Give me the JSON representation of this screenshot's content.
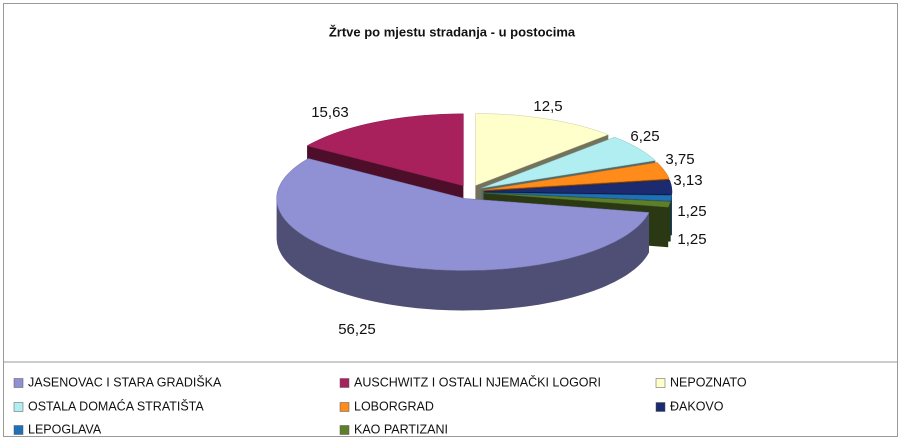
{
  "chart_data": {
    "type": "pie3d",
    "title": "Žrtve po mjestu stradanja - u postocima",
    "categories": [
      "JASENOVAC I STARA GRADIŠKA",
      "AUSCHWITZ I OSTALI NJEMAČKI LOGORI",
      "NEPOZNATO",
      "OSTALA DOMAĆA STRATIŠTA",
      "LOBORGRAD",
      "ĐAKOVO",
      "LEPOGLAVA",
      "KAO PARTIZANI"
    ],
    "values": [
      56.25,
      15.63,
      12.5,
      6.25,
      3.75,
      3.13,
      1.25,
      1.25
    ],
    "value_labels": [
      "56,25",
      "15,63",
      "12,5",
      "6,25",
      "3,75",
      "3,13",
      "1,25",
      "1,25"
    ],
    "colors": [
      "#9090d4",
      "#a8205c",
      "#ffffcc",
      "#b0eef2",
      "#ff8c1a",
      "#1c2a70",
      "#1f70b4",
      "#5e7f2a"
    ],
    "legend": "bottom"
  }
}
